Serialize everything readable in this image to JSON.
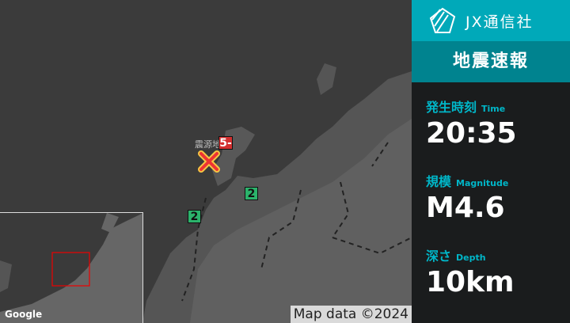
{
  "header": {
    "brand": "JX通信社",
    "title": "地震速報"
  },
  "time": {
    "label": "発生時刻",
    "label_en": "Time",
    "value": "20:35"
  },
  "magnitude": {
    "label": "規模",
    "label_en": "Magnitude",
    "value": "M4.6"
  },
  "depth": {
    "label": "深さ",
    "label_en": "Depth",
    "value": "10km"
  },
  "map": {
    "epicenter_label": "震源地",
    "max_intensity": "5-",
    "intensities": [
      "2",
      "2"
    ],
    "attribution": "Map data ©2024",
    "google": "Google"
  },
  "colors": {
    "brand": "#00a9b9",
    "title_bg": "#00838f",
    "intensity5": "#d32f2f",
    "intensity2": "#2bb36b"
  }
}
